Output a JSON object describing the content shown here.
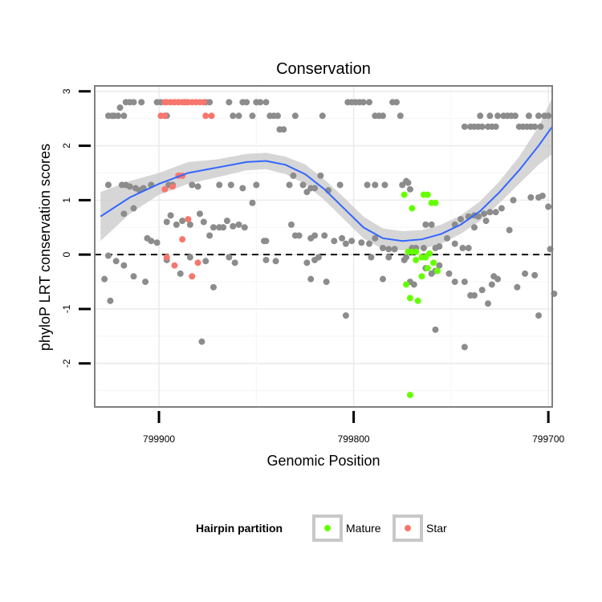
{
  "chart_data": {
    "type": "scatter",
    "title": "Conservation",
    "xlabel": "Genomic Position",
    "ylabel": "phyloP LRT conservation scores",
    "x_reversed": true,
    "xlim": [
      799933,
      799698
    ],
    "ylim": [
      -2.8,
      3.1
    ],
    "x_ticks": [
      799900,
      799800,
      799700
    ],
    "x_tick_labels": [
      "799900",
      "799800",
      "799700"
    ],
    "y_ticks": [
      -2,
      -1,
      0,
      1,
      2,
      3
    ],
    "y_tick_labels": [
      "-2",
      "-1",
      "0",
      "1",
      "2",
      "3"
    ],
    "grid": true,
    "reference_line": {
      "y": 0,
      "style": "dashed"
    },
    "legend": {
      "title": "Hairpin partition",
      "position": "bottom",
      "entries": [
        {
          "name": "Mature",
          "color": "#66ff00"
        },
        {
          "name": "Star",
          "color": "#f8766d"
        }
      ]
    },
    "colors": {
      "background_points": "#8c8c8c",
      "mature": "#66ff00",
      "star": "#f8766d",
      "smooth_line": "#3366ff",
      "ribbon": "#c8c8c8"
    },
    "series": [
      {
        "name": "",
        "color": "#8c8c8c",
        "points": [
          [
            799926,
            2.55
          ],
          [
            799924,
            2.55
          ],
          [
            799923,
            2.55
          ],
          [
            799921,
            2.55
          ],
          [
            799920,
            2.7
          ],
          [
            799918,
            2.55
          ],
          [
            799917,
            2.8
          ],
          [
            799915,
            2.8
          ],
          [
            799913,
            2.8
          ],
          [
            799909,
            2.8
          ],
          [
            799901,
            2.8
          ],
          [
            799899,
            2.8
          ],
          [
            799897,
            2.55
          ],
          [
            799896,
            2.55
          ],
          [
            799892,
            2.8
          ],
          [
            799890,
            2.8
          ],
          [
            799887,
            2.8
          ],
          [
            799876,
            2.8
          ],
          [
            799874,
            2.8
          ],
          [
            799864,
            2.8
          ],
          [
            799862,
            2.55
          ],
          [
            799859,
            2.55
          ],
          [
            799857,
            2.8
          ],
          [
            799855,
            2.8
          ],
          [
            799852,
            2.55
          ],
          [
            799850,
            2.8
          ],
          [
            799848,
            2.8
          ],
          [
            799845,
            2.8
          ],
          [
            799843,
            2.55
          ],
          [
            799841,
            2.55
          ],
          [
            799839,
            2.55
          ],
          [
            799838,
            2.3
          ],
          [
            799836,
            2.3
          ],
          [
            799830,
            2.55
          ],
          [
            799816,
            2.55
          ],
          [
            799803,
            2.8
          ],
          [
            799801,
            2.8
          ],
          [
            799799,
            2.8
          ],
          [
            799797,
            2.8
          ],
          [
            799795,
            2.8
          ],
          [
            799792,
            2.8
          ],
          [
            799789,
            2.55
          ],
          [
            799787,
            2.55
          ],
          [
            799785,
            2.55
          ],
          [
            799780,
            2.8
          ],
          [
            799778,
            2.8
          ],
          [
            799776,
            2.55
          ],
          [
            799743,
            2.35
          ],
          [
            799740,
            2.35
          ],
          [
            799738,
            2.35
          ],
          [
            799736,
            2.35
          ],
          [
            799734,
            2.35
          ],
          [
            799731,
            2.35
          ],
          [
            799729,
            2.35
          ],
          [
            799727,
            2.35
          ],
          [
            799726,
            2.55
          ],
          [
            799723,
            2.55
          ],
          [
            799721,
            2.55
          ],
          [
            799719,
            2.55
          ],
          [
            799717,
            2.55
          ],
          [
            799715,
            2.35
          ],
          [
            799713,
            2.35
          ],
          [
            799711,
            2.35
          ],
          [
            799709,
            2.35
          ],
          [
            799707,
            2.35
          ],
          [
            799705,
            2.55
          ],
          [
            799702,
            2.55
          ],
          [
            799700,
            2.55
          ],
          [
            799730,
            2.55
          ],
          [
            799735,
            2.55
          ],
          [
            799710,
            2.55
          ],
          [
            799704,
            2.35
          ],
          [
            799926,
            1.28
          ],
          [
            799919,
            1.28
          ],
          [
            799917,
            1.28
          ],
          [
            799915,
            1.25
          ],
          [
            799912,
            1.22
          ],
          [
            799910,
            1.18
          ],
          [
            799908,
            1.22
          ],
          [
            799904,
            1.28
          ],
          [
            799895,
            1.28
          ],
          [
            799893,
            1.28
          ],
          [
            799883,
            1.28
          ],
          [
            799880,
            1.25
          ],
          [
            799869,
            1.28
          ],
          [
            799863,
            1.28
          ],
          [
            799857,
            1.22
          ],
          [
            799850,
            1.28
          ],
          [
            799833,
            1.28
          ],
          [
            799831,
            1.45
          ],
          [
            799826,
            1.28
          ],
          [
            799824,
            1.15
          ],
          [
            799822,
            1.22
          ],
          [
            799820,
            1.22
          ],
          [
            799817,
            1.45
          ],
          [
            799813,
            1.18
          ],
          [
            799807,
            1.28
          ],
          [
            799793,
            1.28
          ],
          [
            799789,
            1.28
          ],
          [
            799784,
            1.28
          ],
          [
            799775,
            1.28
          ],
          [
            799773,
            1.35
          ],
          [
            799772,
            1.32
          ],
          [
            799771,
            1.2
          ],
          [
            799763,
            0.55
          ],
          [
            799760,
            0.55
          ],
          [
            799748,
            0.55
          ],
          [
            799745,
            0.65
          ],
          [
            799741,
            0.7
          ],
          [
            799738,
            0.72
          ],
          [
            799736,
            0.7
          ],
          [
            799733,
            0.75
          ],
          [
            799730,
            0.78
          ],
          [
            799727,
            0.78
          ],
          [
            799724,
            0.85
          ],
          [
            799718,
            1.0
          ],
          [
            799709,
            1.05
          ],
          [
            799705,
            1.05
          ],
          [
            799703,
            1.08
          ],
          [
            799700,
            0.88
          ],
          [
            799918,
            0.75
          ],
          [
            799913,
            0.85
          ],
          [
            799906,
            0.3
          ],
          [
            799904,
            0.25
          ],
          [
            799901,
            0.22
          ],
          [
            799896,
            0.6
          ],
          [
            799894,
            0.72
          ],
          [
            799891,
            0.55
          ],
          [
            799888,
            0.62
          ],
          [
            799884,
            0.55
          ],
          [
            799879,
            0.75
          ],
          [
            799877,
            0.6
          ],
          [
            799874,
            0.35
          ],
          [
            799872,
            0.5
          ],
          [
            799869,
            0.5
          ],
          [
            799867,
            0.5
          ],
          [
            799865,
            0.62
          ],
          [
            799862,
            0.52
          ],
          [
            799859,
            0.55
          ],
          [
            799856,
            0.5
          ],
          [
            799852,
            0.95
          ],
          [
            799846,
            0.25
          ],
          [
            799845,
            0.25
          ],
          [
            799832,
            0.55
          ],
          [
            799830,
            0.35
          ],
          [
            799828,
            0.35
          ],
          [
            799822,
            0.3
          ],
          [
            799820,
            0.35
          ],
          [
            799815,
            0.35
          ],
          [
            799810,
            0.25
          ],
          [
            799806,
            0.3
          ],
          [
            799804,
            0.2
          ],
          [
            799801,
            0.25
          ],
          [
            799796,
            0.22
          ],
          [
            799792,
            0.2
          ],
          [
            799789,
            0.3
          ],
          [
            799785,
            0.12
          ],
          [
            799782,
            0.1
          ],
          [
            799779,
            0.1
          ],
          [
            799770,
            0.12
          ],
          [
            799768,
            0.12
          ],
          [
            799764,
            0.12
          ],
          [
            799758,
            0.12
          ],
          [
            799756,
            0.15
          ],
          [
            799752,
            0.3
          ],
          [
            799748,
            0.2
          ],
          [
            799744,
            0.12
          ],
          [
            799741,
            0.12
          ],
          [
            799738,
            0.5
          ],
          [
            799732,
            0.62
          ],
          [
            799720,
            0.45
          ],
          [
            799699,
            0.1
          ],
          [
            799928,
            -0.45
          ],
          [
            799926,
            -0.02
          ],
          [
            799925,
            -0.85
          ],
          [
            799922,
            -0.12
          ],
          [
            799918,
            -0.2
          ],
          [
            799913,
            -0.4
          ],
          [
            799907,
            -0.5
          ],
          [
            799896,
            -0.1
          ],
          [
            799889,
            -0.35
          ],
          [
            799884,
            -0.05
          ],
          [
            799876,
            -0.12
          ],
          [
            799872,
            -0.6
          ],
          [
            799864,
            -0.05
          ],
          [
            799861,
            -0.15
          ],
          [
            799845,
            -0.1
          ],
          [
            799840,
            -0.12
          ],
          [
            799824,
            -0.15
          ],
          [
            799822,
            -0.45
          ],
          [
            799820,
            -0.1
          ],
          [
            799818,
            -0.05
          ],
          [
            799814,
            -0.5
          ],
          [
            799791,
            -0.05
          ],
          [
            799785,
            -0.45
          ],
          [
            799782,
            -0.05
          ],
          [
            799774,
            -0.1
          ],
          [
            799773,
            -0.05
          ],
          [
            799771,
            -0.5
          ],
          [
            799769,
            -0.55
          ],
          [
            799763,
            -0.25
          ],
          [
            799760,
            -0.35
          ],
          [
            799758,
            -0.3
          ],
          [
            799756,
            -0.2
          ],
          [
            799751,
            -0.35
          ],
          [
            799748,
            -0.5
          ],
          [
            799743,
            -0.5
          ],
          [
            799740,
            -0.75
          ],
          [
            799738,
            -0.75
          ],
          [
            799734,
            -0.65
          ],
          [
            799729,
            -0.55
          ],
          [
            799726,
            -0.45
          ],
          [
            799716,
            -0.6
          ],
          [
            799712,
            -0.35
          ],
          [
            799705,
            -1.12
          ],
          [
            799728,
            -0.4
          ],
          [
            799878,
            -1.6
          ],
          [
            799804,
            -1.12
          ],
          [
            799758,
            -1.38
          ],
          [
            799743,
            -1.7
          ],
          [
            799707,
            -0.38
          ],
          [
            799731,
            -0.9
          ],
          [
            799697,
            -0.72
          ]
        ]
      },
      {
        "name": "Mature",
        "color": "#66ff00",
        "points": [
          [
            799774,
            1.1
          ],
          [
            799770,
            0.85
          ],
          [
            799764,
            1.1
          ],
          [
            799762,
            1.1
          ],
          [
            799760,
            0.95
          ],
          [
            799758,
            0.95
          ],
          [
            799772,
            0.05
          ],
          [
            799770,
            0.05
          ],
          [
            799768,
            0.05
          ],
          [
            799765,
            -0.05
          ],
          [
            799763,
            -0.05
          ],
          [
            799761,
            0.02
          ],
          [
            799773,
            -0.55
          ],
          [
            799768,
            -0.1
          ],
          [
            799765,
            -0.4
          ],
          [
            799771,
            -0.8
          ],
          [
            799767,
            -0.85
          ],
          [
            799762,
            -0.25
          ],
          [
            799759,
            -0.15
          ],
          [
            799757,
            -0.3
          ],
          [
            799771,
            -2.58
          ]
        ]
      },
      {
        "name": "Star",
        "color": "#f8766d",
        "points": [
          [
            799897,
            2.8
          ],
          [
            799896,
            2.8
          ],
          [
            799894,
            2.8
          ],
          [
            799892,
            2.8
          ],
          [
            799890,
            2.8
          ],
          [
            799888,
            2.8
          ],
          [
            799886,
            2.8
          ],
          [
            799885,
            2.8
          ],
          [
            799883,
            2.8
          ],
          [
            799881,
            2.8
          ],
          [
            799879,
            2.8
          ],
          [
            799877,
            2.8
          ],
          [
            799899,
            2.55
          ],
          [
            799897,
            2.55
          ],
          [
            799876,
            2.55
          ],
          [
            799873,
            2.55
          ],
          [
            799890,
            1.45
          ],
          [
            799888,
            1.45
          ],
          [
            799897,
            1.2
          ],
          [
            799893,
            1.25
          ],
          [
            799885,
            0.65
          ],
          [
            799888,
            0.28
          ],
          [
            799896,
            -0.05
          ],
          [
            799892,
            -0.2
          ],
          [
            799883,
            -0.4
          ],
          [
            799880,
            -0.15
          ]
        ]
      }
    ],
    "smooth": [
      [
        799930,
        0.7,
        0.25,
        1.15
      ],
      [
        799915,
        1.05,
        0.75,
        1.35
      ],
      [
        799900,
        1.3,
        1.1,
        1.5
      ],
      [
        799885,
        1.5,
        1.3,
        1.7
      ],
      [
        799870,
        1.6,
        1.42,
        1.75
      ],
      [
        799855,
        1.7,
        1.55,
        1.85
      ],
      [
        799845,
        1.72,
        1.57,
        1.87
      ],
      [
        799835,
        1.65,
        1.48,
        1.8
      ],
      [
        799825,
        1.48,
        1.3,
        1.66
      ],
      [
        799815,
        1.2,
        1.0,
        1.38
      ],
      [
        799805,
        0.85,
        0.65,
        1.05
      ],
      [
        799795,
        0.5,
        0.3,
        0.7
      ],
      [
        799785,
        0.3,
        0.1,
        0.48
      ],
      [
        799775,
        0.25,
        0.08,
        0.43
      ],
      [
        799765,
        0.28,
        0.1,
        0.45
      ],
      [
        799755,
        0.38,
        0.2,
        0.55
      ],
      [
        799745,
        0.55,
        0.38,
        0.72
      ],
      [
        799735,
        0.8,
        0.62,
        0.98
      ],
      [
        799725,
        1.15,
        0.95,
        1.35
      ],
      [
        799715,
        1.55,
        1.3,
        1.8
      ],
      [
        799705,
        2.0,
        1.65,
        2.35
      ],
      [
        799698,
        2.35,
        1.85,
        2.88
      ]
    ]
  }
}
